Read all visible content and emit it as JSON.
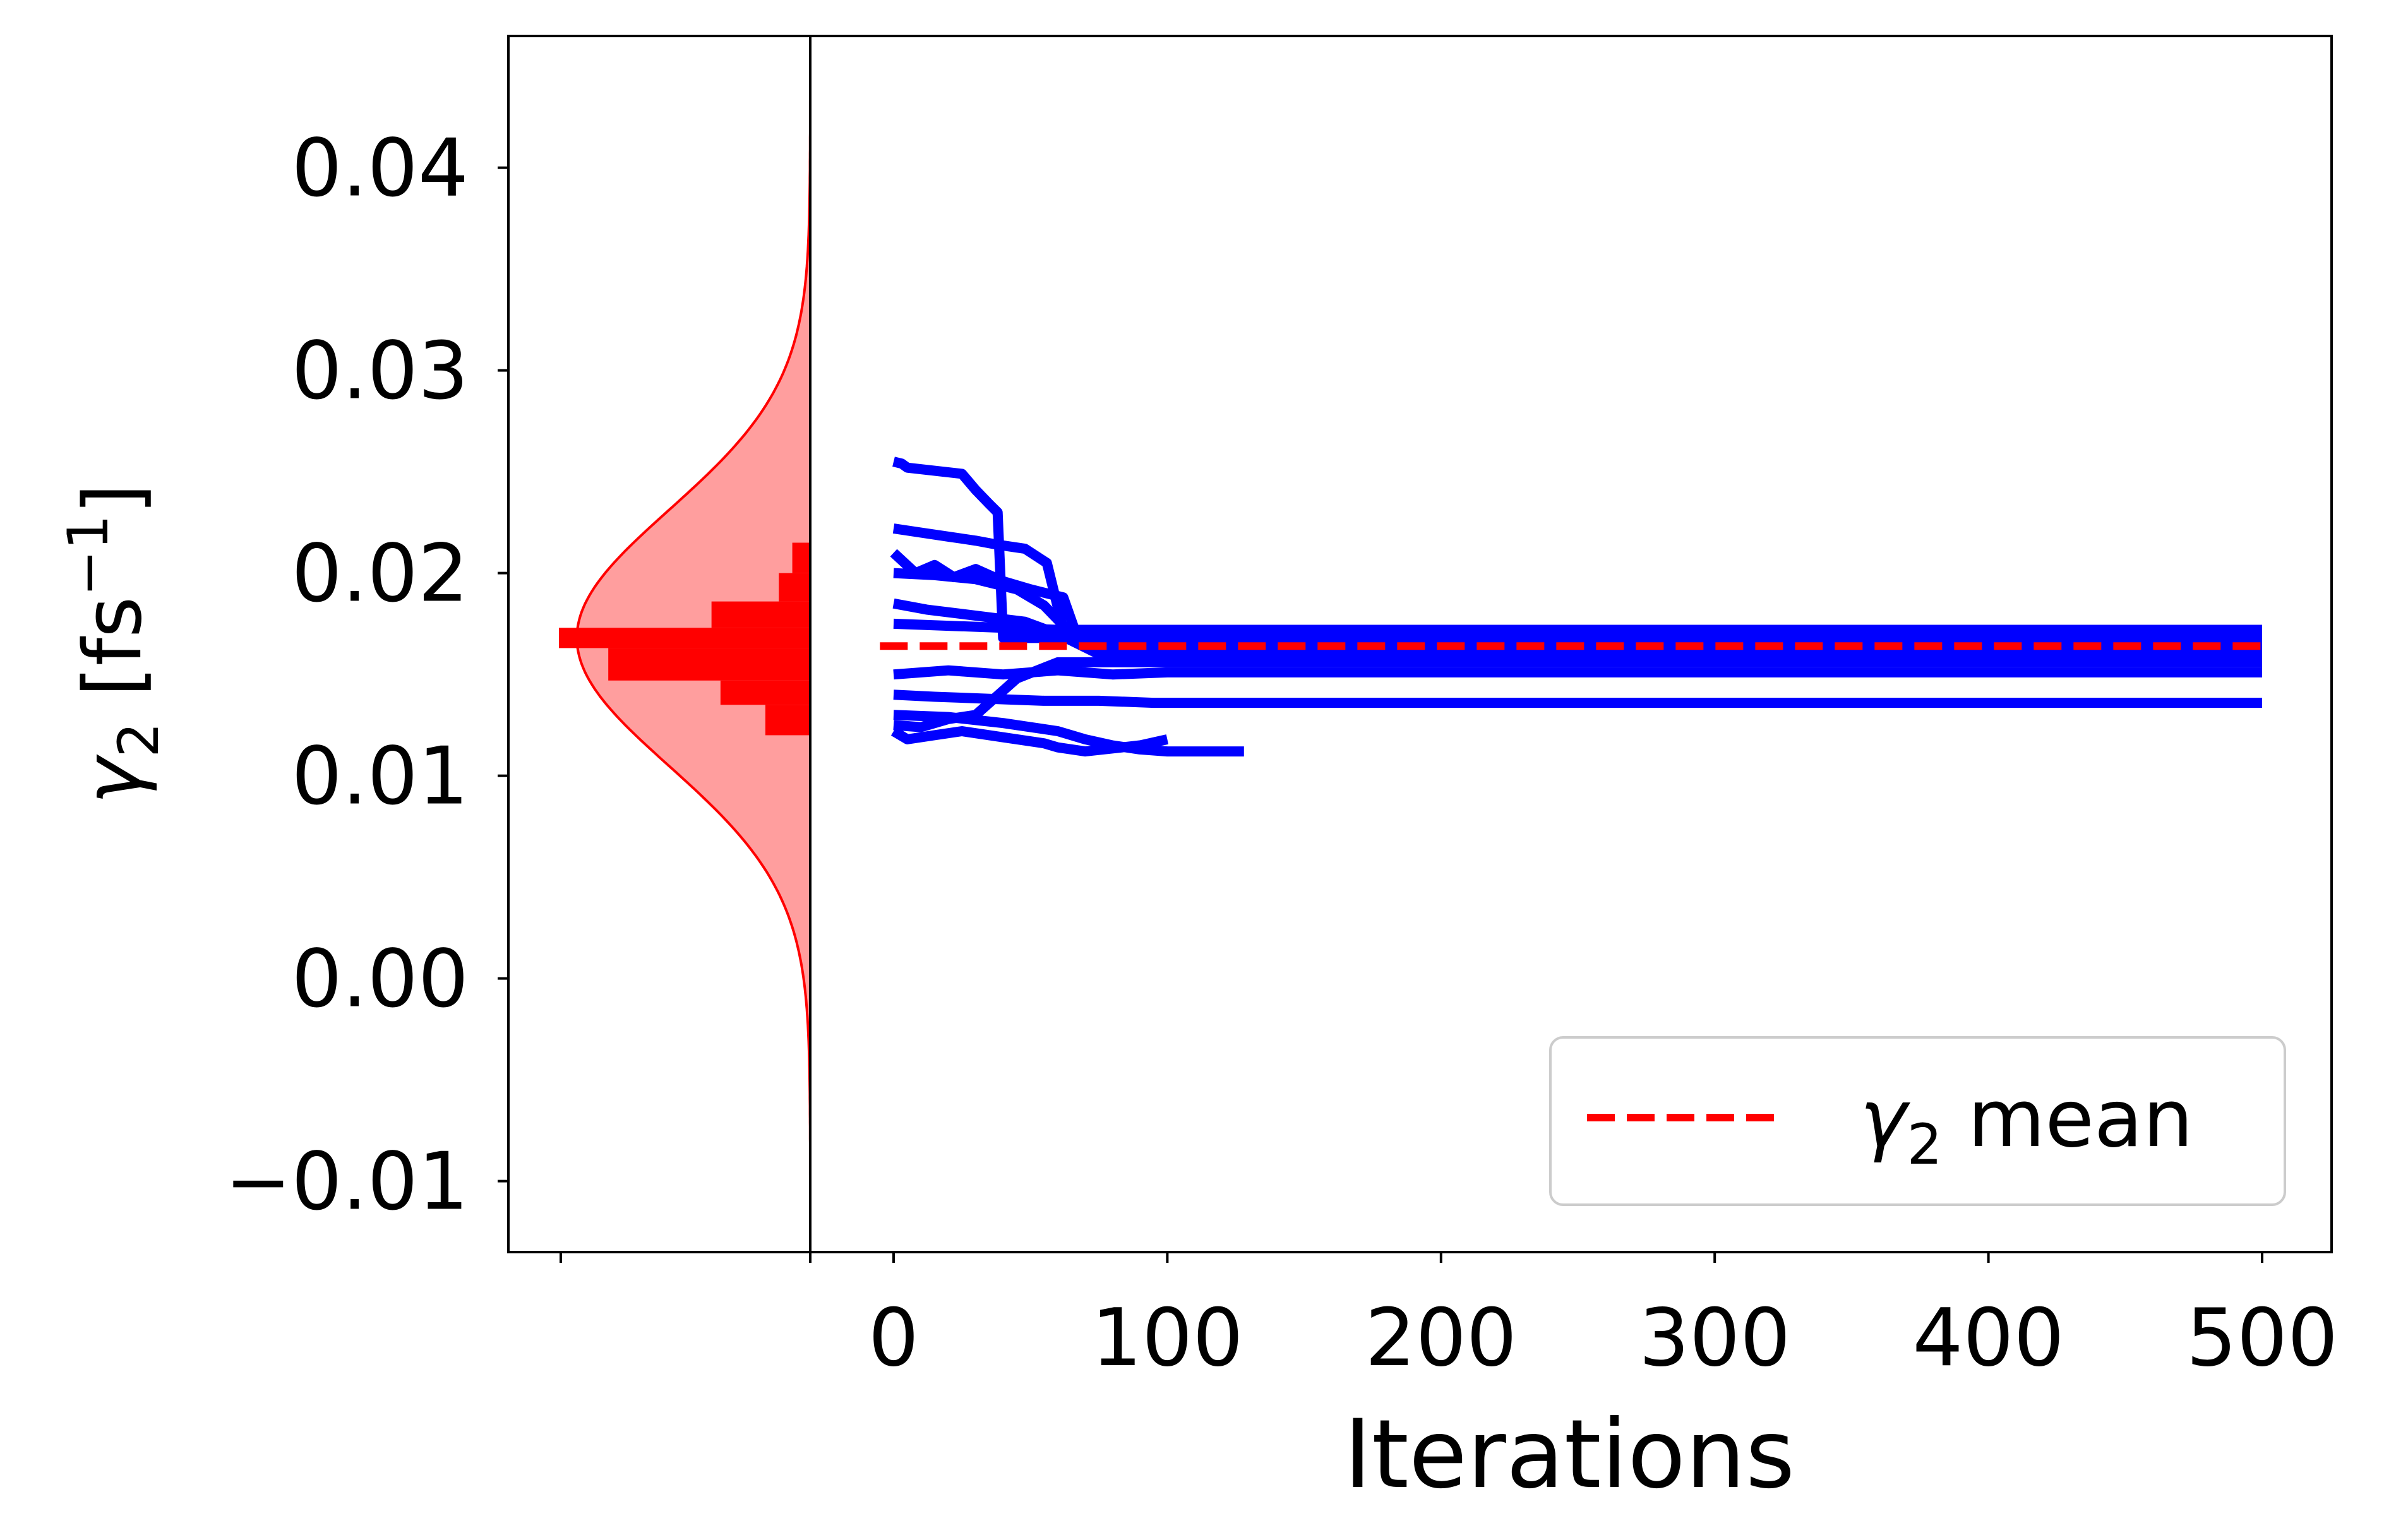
{
  "chart_data": {
    "type": "line",
    "xlabel": "Iterations",
    "ylabel": {
      "symbol": "γ",
      "subscript": "2",
      "unit_open": " [fs",
      "unit_exp": "−1",
      "unit_close": "]"
    },
    "xlim": [
      -5,
      525
    ],
    "ylim": [
      -0.0135,
      0.0465
    ],
    "x_ticks": [
      {
        "value": 0,
        "label": "0"
      },
      {
        "value": 100,
        "label": "100"
      },
      {
        "value": 200,
        "label": "200"
      },
      {
        "value": 300,
        "label": "300"
      },
      {
        "value": 400,
        "label": "400"
      },
      {
        "value": 500,
        "label": "500"
      }
    ],
    "y_ticks": [
      {
        "value": -0.01,
        "label": "−0.01"
      },
      {
        "value": 0.0,
        "label": "0.00"
      },
      {
        "value": 0.01,
        "label": "0.01"
      },
      {
        "value": 0.02,
        "label": "0.02"
      },
      {
        "value": 0.03,
        "label": "0.03"
      },
      {
        "value": 0.04,
        "label": "0.04"
      }
    ],
    "grid": false,
    "legend": {
      "placement": "lower right",
      "entries": [
        {
          "symbol": "γ",
          "subscript": "2",
          "text": " mean",
          "style": "dashed",
          "color": "#ff0000"
        }
      ]
    },
    "mean": {
      "y": 0.0164,
      "x_range": [
        -5,
        500
      ],
      "color": "#ff0000"
    },
    "trace_color": "#0000ff",
    "chains": [
      {
        "x": [
          0,
          3,
          5,
          25,
          30,
          35,
          38,
          40,
          500
        ],
        "y": [
          0.0255,
          0.0254,
          0.0252,
          0.0249,
          0.0241,
          0.0234,
          0.023,
          0.0168,
          0.0168
        ]
      },
      {
        "x": [
          0,
          10,
          20,
          30,
          38,
          48,
          56,
          62,
          500
        ],
        "y": [
          0.0222,
          0.022,
          0.0218,
          0.0216,
          0.0214,
          0.0212,
          0.0205,
          0.0172,
          0.0172
        ]
      },
      {
        "x": [
          0,
          8,
          15,
          22,
          30,
          40,
          50,
          62,
          68,
          500
        ],
        "y": [
          0.021,
          0.02,
          0.0204,
          0.0198,
          0.0202,
          0.0196,
          0.0192,
          0.0188,
          0.0165,
          0.0165
        ]
      },
      {
        "x": [
          0,
          15,
          30,
          45,
          55,
          65,
          80,
          500
        ],
        "y": [
          0.02,
          0.0199,
          0.0197,
          0.0192,
          0.0184,
          0.017,
          0.0162,
          0.0162
        ]
      },
      {
        "x": [
          0,
          12,
          24,
          36,
          48,
          60,
          75,
          500
        ],
        "y": [
          0.0185,
          0.0182,
          0.018,
          0.0178,
          0.0176,
          0.017,
          0.016,
          0.016
        ]
      },
      {
        "x": [
          0,
          20,
          40,
          60,
          80,
          100,
          500
        ],
        "y": [
          0.015,
          0.0152,
          0.015,
          0.0152,
          0.015,
          0.0151,
          0.0151
        ]
      },
      {
        "x": [
          0,
          15,
          35,
          55,
          75,
          95,
          500
        ],
        "y": [
          0.014,
          0.0139,
          0.0138,
          0.0137,
          0.0137,
          0.0136,
          0.0136
        ]
      },
      {
        "x": [
          0,
          10,
          20,
          30,
          45,
          60,
          500
        ],
        "y": [
          0.0125,
          0.0124,
          0.0128,
          0.013,
          0.0148,
          0.0156,
          0.0156
        ]
      },
      {
        "x": [
          0,
          5,
          15,
          25,
          40,
          55,
          60,
          70,
          90,
          100
        ],
        "y": [
          0.0122,
          0.0118,
          0.012,
          0.0122,
          0.0119,
          0.0116,
          0.0114,
          0.0112,
          0.0115,
          0.0118
        ]
      },
      {
        "x": [
          0,
          20,
          40,
          60,
          70,
          80,
          90,
          100,
          110,
          128
        ],
        "y": [
          0.013,
          0.0129,
          0.0126,
          0.0122,
          0.0118,
          0.0115,
          0.0113,
          0.0112,
          0.0112,
          0.0112
        ]
      },
      {
        "x": [
          0,
          20,
          40,
          60,
          80,
          100,
          130,
          160,
          500
        ],
        "y": [
          0.0175,
          0.0174,
          0.0173,
          0.0172,
          0.0172,
          0.0172,
          0.017,
          0.0168,
          0.0168
        ]
      }
    ],
    "histogram": {
      "orientation": "horizontal",
      "color": "#ff0000",
      "bins": [
        {
          "y0": 0.012,
          "y1": 0.0135,
          "count": 10
        },
        {
          "y0": 0.0135,
          "y1": 0.0147,
          "count": 20
        },
        {
          "y0": 0.0147,
          "y1": 0.0163,
          "count": 45
        },
        {
          "y0": 0.0163,
          "y1": 0.0173,
          "count": 56
        },
        {
          "y0": 0.0173,
          "y1": 0.0186,
          "count": 22
        },
        {
          "y0": 0.0186,
          "y1": 0.02,
          "count": 7
        },
        {
          "y0": 0.02,
          "y1": 0.0215,
          "count": 4
        }
      ]
    },
    "normal_fit": {
      "mean": 0.0168,
      "std": 0.0063,
      "peak_count": 52,
      "color": "#ff0000",
      "fill": "#ff9e9e"
    }
  }
}
